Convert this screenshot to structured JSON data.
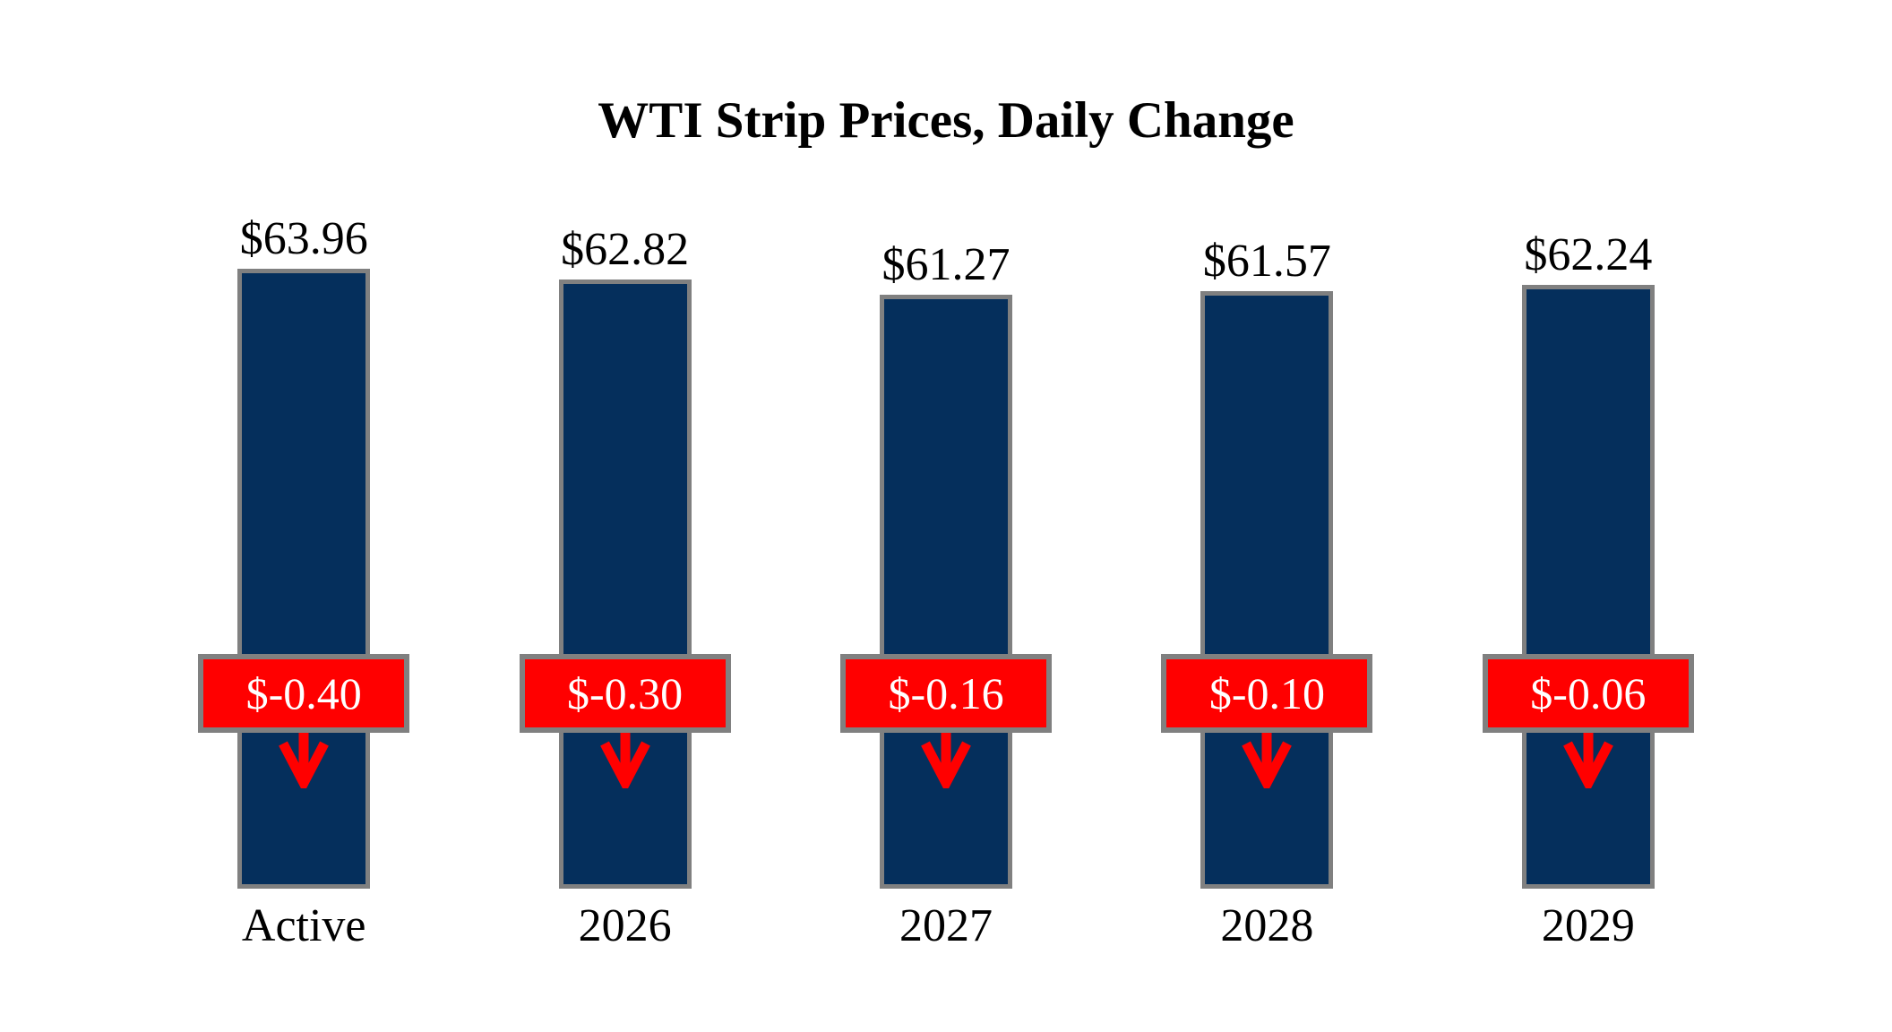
{
  "title": "WTI Strip Prices, Daily Change",
  "colors": {
    "background": "#FFFFFF",
    "text": "#000000",
    "bar": "#052F5C",
    "bar_border": "#808080",
    "badge_bg": "#FF0000",
    "badge_border": "#808080",
    "badge_text": "#FFFFFF",
    "arrow": "#FF0000"
  },
  "chart_data": {
    "type": "bar",
    "title": "WTI Strip Prices, Daily Change",
    "categories": [
      "Active",
      "2026",
      "2027",
      "2028",
      "2029"
    ],
    "values": [
      63.96,
      62.82,
      61.27,
      61.57,
      62.24
    ],
    "value_labels": [
      "$63.96",
      "$62.82",
      "$61.27",
      "$61.57",
      "$62.24"
    ],
    "changes": [
      -0.4,
      -0.3,
      -0.16,
      -0.1,
      -0.06
    ],
    "change_labels": [
      "$-0.40",
      "$-0.30",
      "$-0.16",
      "$-0.10",
      "$-0.06"
    ],
    "change_direction": "down",
    "xlabel": "",
    "ylabel": "",
    "ylim": [
      0,
      64
    ],
    "grid": false,
    "legend": false,
    "bar_color": "#052F5C",
    "annotation_style": "red badge with gray border and red down arrow centered on each bar"
  }
}
